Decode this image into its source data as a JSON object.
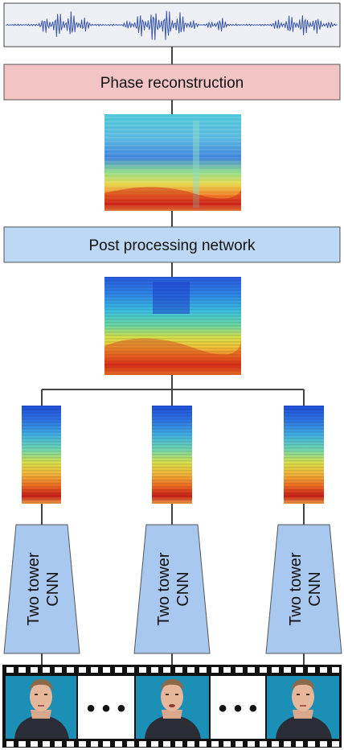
{
  "boxes": {
    "phase_reconstruction": "Phase reconstruction",
    "post_processing": "Post processing network"
  },
  "towers": [
    {
      "line1": "Two tower",
      "line2": "CNN"
    },
    {
      "line1": "Two tower",
      "line2": "CNN"
    },
    {
      "line1": "Two tower",
      "line2": "CNN"
    }
  ],
  "ellipsis": [
    "• • •",
    "• • •"
  ],
  "colors": {
    "phase_box_fill": "#f2c5c4",
    "post_box_fill": "#bcd8f4",
    "tower_fill": "#a9c8ef",
    "waveform": "#3c56a8",
    "waveform_bg": "#eef0f6",
    "film_strip": "#111111",
    "face_bg": "#1c8fb6"
  },
  "icons": [
    "waveform-icon",
    "spectrogram-icon",
    "face-frame-icon",
    "film-strip-icon"
  ]
}
